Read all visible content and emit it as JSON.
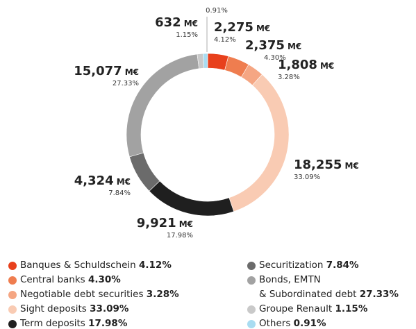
{
  "chart_data": {
    "type": "donut",
    "series": [
      {
        "name": "Banques & Schuldschein",
        "color": "#e8401c"
      },
      {
        "name": "Central banks",
        "color": "#ef7d4f"
      },
      {
        "name": "Negotiable debt securities",
        "color": "#f5a683"
      },
      {
        "name": "Sight deposits",
        "color": "#f9cbb3"
      },
      {
        "name": "Term deposits",
        "color": "#1f1f1f"
      },
      {
        "name": "Securitization",
        "color": "#6b6b6b"
      },
      {
        "name": "Bonds, EMTN\n& Subordinated debt",
        "color": "#a2a2a2"
      },
      {
        "name": "Groupe Renault",
        "color": "#c9c9c9"
      },
      {
        "name": "Others",
        "color": "#a9dcf1"
      }
    ],
    "values": [
      2275,
      2375,
      1808,
      18255,
      9921,
      4324,
      15077,
      632,
      null
    ],
    "value_labels": [
      "2,275",
      "2,375",
      "1,808",
      "18,255",
      "9,921",
      "4,324",
      "15,077",
      "632",
      null
    ],
    "unit": "M€",
    "percentages": [
      4.12,
      4.3,
      3.28,
      33.09,
      17.98,
      7.84,
      27.33,
      1.15,
      0.91
    ],
    "percentage_labels": [
      "4.12%",
      "4.30%",
      "3.28%",
      "33.09%",
      "17.98%",
      "7.84%",
      "27.33%",
      "1.15%",
      "0.91%"
    ]
  }
}
